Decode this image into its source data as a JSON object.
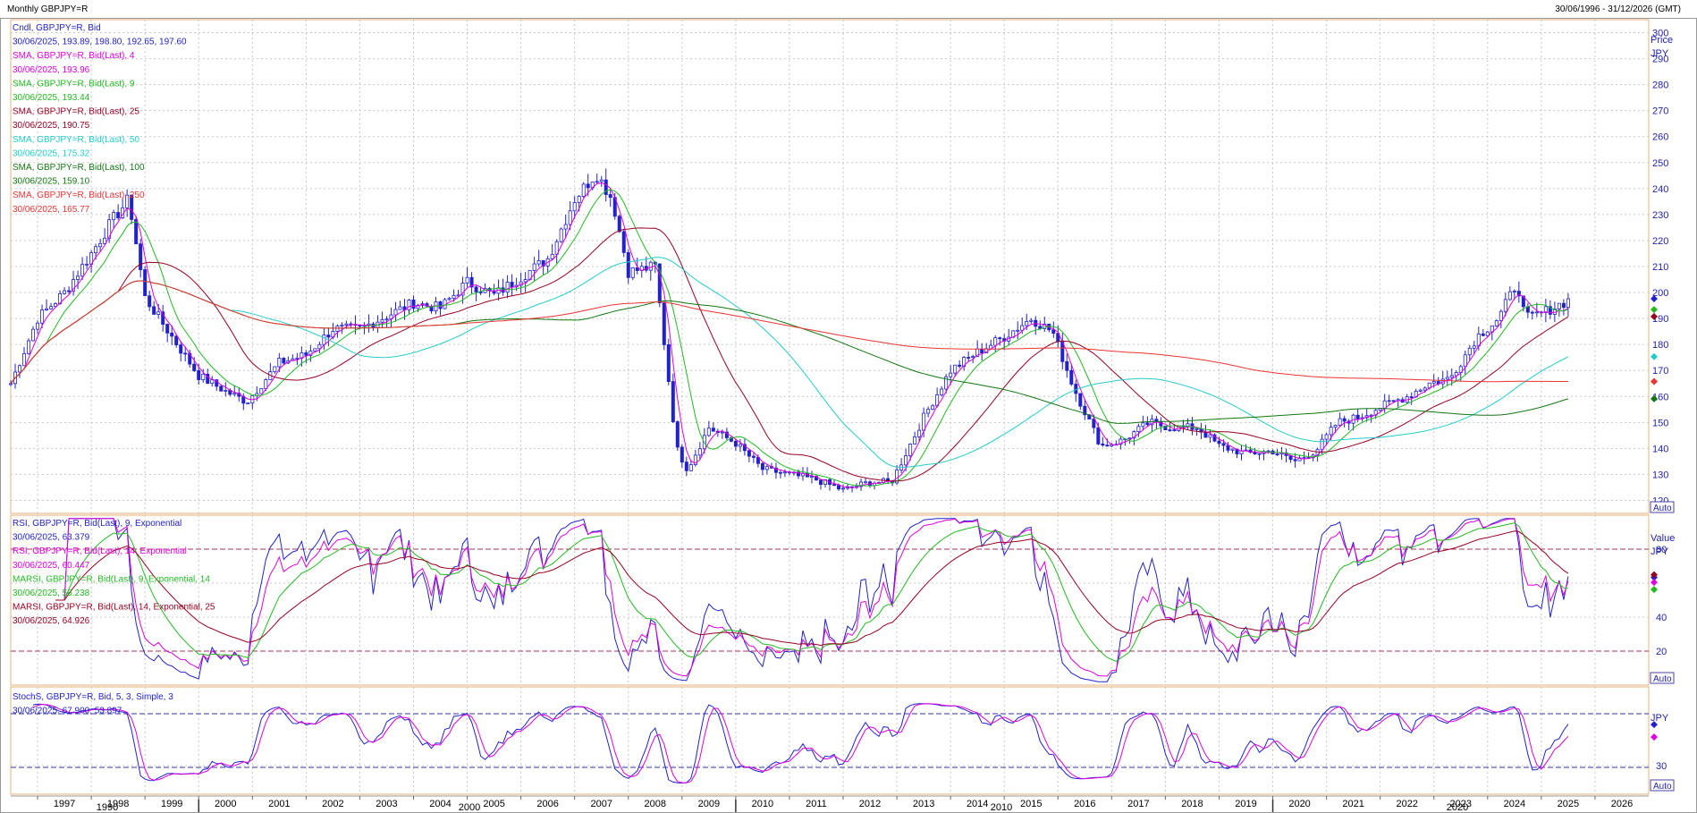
{
  "header": {
    "title": "Monthly GBPJPY=R",
    "date_range": "30/06/1996 - 31/12/2026 (GMT)"
  },
  "panels": {
    "price": {
      "axis_title": "Price",
      "axis_unit": "JPY",
      "auto_label": "Auto",
      "ticks": [
        120,
        130,
        140,
        150,
        160,
        170,
        180,
        190,
        200,
        210,
        220,
        230,
        240,
        250,
        260,
        270,
        280,
        290,
        300
      ],
      "legend": [
        {
          "label": "Cndl, GBPJPY=R, Bid",
          "value": "30/06/2025, 193.89, 198.80, 192.65, 197.60",
          "color": "#2222cc"
        },
        {
          "label": "SMA, GBPJPY=R, Bid(Last),  4",
          "value": "30/06/2025, 193.96",
          "color": "#e000e0"
        },
        {
          "label": "SMA, GBPJPY=R, Bid(Last),  9",
          "value": "30/06/2025, 193.44",
          "color": "#22bb22"
        },
        {
          "label": "SMA, GBPJPY=R, Bid(Last),  25",
          "value": "30/06/2025, 190.75",
          "color": "#990022"
        },
        {
          "label": "SMA, GBPJPY=R, Bid(Last),  50",
          "value": "30/06/2025, 175.32",
          "color": "#22cccc"
        },
        {
          "label": "SMA, GBPJPY=R, Bid(Last),  100",
          "value": "30/06/2025, 159.10",
          "color": "#117711"
        },
        {
          "label": "SMA, GBPJPY=R, Bid(Last),  250",
          "value": "30/06/2025, 165.77",
          "color": "#ee3333"
        }
      ]
    },
    "rsi": {
      "axis_title": "Value",
      "axis_unit": "JPY",
      "auto_label": "Auto",
      "ticks": [
        20,
        40,
        80
      ],
      "legend": [
        {
          "label": "RSI, GBPJPY=R, Bid(Last),  9, Exponential",
          "value": "30/06/2025, 63.379",
          "color": "#2222cc"
        },
        {
          "label": "RSI, GBPJPY=R, Bid(Last),  14, Exponential",
          "value": "30/06/2025, 60.447",
          "color": "#e000e0"
        },
        {
          "label": "MARSI, GBPJPY=R, Bid(Last),  9, Exponential, 14",
          "value": "30/06/2025, 56.238",
          "color": "#22bb22"
        },
        {
          "label": "MARSI, GBPJPY=R, Bid(Last),  14, Exponential, 25",
          "value": "30/06/2025, 64.926",
          "color": "#990022"
        }
      ]
    },
    "stoch": {
      "axis_unit": "JPY",
      "auto_label": "Auto",
      "ticks": [
        30
      ],
      "legend": [
        {
          "label": "StochS, GBPJPY=R, Bid,  5, 3, Simple, 3",
          "value": "30/06/2025, 67.900, 53.897",
          "color": "#2222cc"
        }
      ]
    }
  },
  "x_axis": {
    "years": [
      "1997",
      "1998",
      "1999",
      "2000",
      "2001",
      "2002",
      "2003",
      "2004",
      "2005",
      "2006",
      "2007",
      "2008",
      "2009",
      "2010",
      "2011",
      "2012",
      "2013",
      "2014",
      "2015",
      "2016",
      "2017",
      "2018",
      "2019",
      "2020",
      "2021",
      "2022",
      "2023",
      "2024",
      "2025",
      "2026"
    ],
    "decades": [
      "1990",
      "2000",
      "2010",
      "2020"
    ]
  },
  "chart_data": {
    "type": "candlestick",
    "title": "Monthly GBPJPY=R",
    "instrument": "GBPJPY=R",
    "interval": "Monthly",
    "x_range": [
      "1996-06",
      "2026-12"
    ],
    "y_range": [
      115,
      305
    ],
    "price_unit": "JPY",
    "last_candle": {
      "date": "30/06/2025",
      "open": 193.89,
      "high": 198.8,
      "low": 192.65,
      "close": 197.6
    },
    "close_series": {
      "x": [
        1996.5,
        1997.0,
        1997.5,
        1998.0,
        1998.4,
        1998.7,
        1999.0,
        1999.5,
        2000.0,
        2000.5,
        2000.9,
        2001.5,
        2002.0,
        2002.5,
        2003.0,
        2003.5,
        2004.0,
        2004.5,
        2005.0,
        2005.5,
        2006.0,
        2006.5,
        2007.0,
        2007.4,
        2007.7,
        2008.0,
        2008.5,
        2008.9,
        2009.1,
        2009.5,
        2010.0,
        2010.5,
        2011.0,
        2011.5,
        2012.0,
        2012.5,
        2012.9,
        2013.5,
        2014.0,
        2014.5,
        2015.0,
        2015.5,
        2015.9,
        2016.3,
        2016.8,
        2017.2,
        2017.7,
        2018.1,
        2018.6,
        2019.0,
        2019.5,
        2020.0,
        2020.4,
        2020.8,
        2021.2,
        2021.6,
        2022.0,
        2022.5,
        2022.9,
        2023.3,
        2023.8,
        2024.2,
        2024.55,
        2024.7,
        2025.0,
        2025.5
      ],
      "y": [
        165,
        190,
        200,
        215,
        228,
        236,
        198,
        183,
        168,
        162,
        158,
        173,
        176,
        186,
        186,
        191,
        196,
        194,
        204,
        199,
        206,
        213,
        236,
        246,
        236,
        208,
        210,
        140,
        132,
        148,
        142,
        132,
        130,
        128,
        124,
        127,
        127,
        152,
        170,
        177,
        183,
        190,
        185,
        163,
        141,
        143,
        150,
        148,
        148,
        141,
        138,
        139,
        135,
        139,
        150,
        152,
        156,
        160,
        165,
        167,
        183,
        190,
        204,
        190,
        192,
        197
      ]
    },
    "sma": [
      {
        "period": 4,
        "last": 193.96
      },
      {
        "period": 9,
        "last": 193.44
      },
      {
        "period": 25,
        "last": 190.75
      },
      {
        "period": 50,
        "last": 175.32
      },
      {
        "period": 100,
        "last": 159.1
      },
      {
        "period": 250,
        "last": 165.77
      }
    ],
    "rsi_indicators": [
      {
        "name": "RSI 9 Exponential",
        "last": 63.379
      },
      {
        "name": "RSI 14 Exponential",
        "last": 60.447
      },
      {
        "name": "MARSI 9 Exponential 14",
        "last": 56.238
      },
      {
        "name": "MARSI 14 Exponential 25",
        "last": 64.926
      }
    ],
    "rsi_levels": [
      20,
      80
    ],
    "stochastic": {
      "name": "StochS 5, 3, Simple, 3",
      "k_last": 67.9,
      "d_last": 53.897
    }
  }
}
